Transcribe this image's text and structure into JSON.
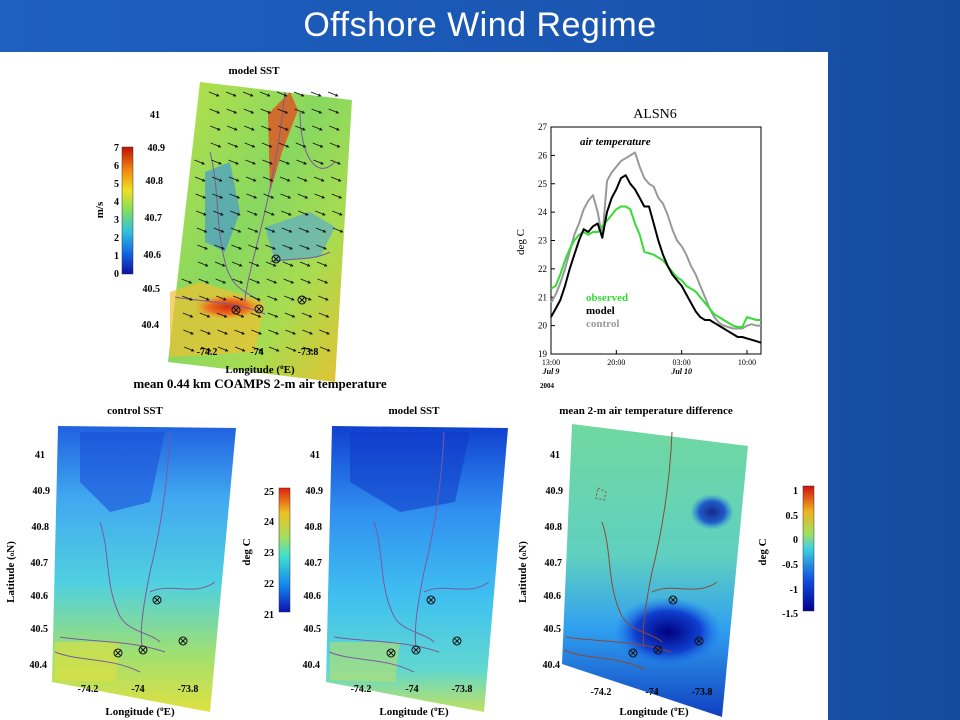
{
  "slide": {
    "title": "Offshore Wind Regime"
  },
  "colors": {
    "observed": "#33dd33",
    "model": "#000000",
    "control": "#999999",
    "coast": "#7a5a9e",
    "slide_bg": "#1a57b3"
  },
  "maps": {
    "wind": {
      "title": "model SST",
      "colorbar_label": "m/s",
      "colorbar_ticks": [
        "0",
        "1",
        "2",
        "3",
        "4",
        "5",
        "6",
        "7"
      ],
      "lat_ticks": [
        "41",
        "40.9",
        "40.8",
        "40.7",
        "40.6",
        "40.5",
        "40.4"
      ],
      "lon_ticks": [
        "-74.2",
        "-74",
        "-73.8"
      ],
      "xlabel": "Longitude (",
      "xlabel_sup": "o",
      "xlabel_end": "E)",
      "caption": "mean 0.44 km COAMPS 2-m air temperature"
    },
    "control": {
      "title": "control SST",
      "ylabel": "Latitude (",
      "ylabel_sup": "o",
      "ylabel_end": "N)",
      "lat_ticks": [
        "41",
        "40.9",
        "40.8",
        "40.7",
        "40.6",
        "40.5",
        "40.4"
      ],
      "lon_ticks": [
        "-74.2",
        "-74",
        "-73.8"
      ],
      "xlabel": "Longitude (",
      "xlabel_sup": "o",
      "xlabel_end": "E)"
    },
    "model": {
      "title": "model SST",
      "lat_ticks": [
        "41",
        "40.9",
        "40.8",
        "40.7",
        "40.6",
        "40.5",
        "40.4"
      ],
      "lon_ticks": [
        "-74.2",
        "-74",
        "-73.8"
      ],
      "xlabel": "Longitude (",
      "xlabel_sup": "o",
      "xlabel_end": "E)",
      "colorbar_label": "deg C",
      "colorbar_ticks": [
        "21",
        "22",
        "23",
        "24",
        "25"
      ]
    },
    "diff": {
      "title": "mean 2-m air temperature difference",
      "ylabel": "Latitude (",
      "ylabel_sup": "o",
      "ylabel_end": "N)",
      "lat_ticks": [
        "41",
        "40.9",
        "40.8",
        "40.7",
        "40.6",
        "40.5",
        "40.4"
      ],
      "lon_ticks": [
        "-74.2",
        "-74",
        "-73.8"
      ],
      "xlabel": "Longitude (",
      "xlabel_sup": "o",
      "xlabel_end": "E)",
      "colorbar_label": "deg C",
      "colorbar_ticks": [
        "1",
        "0.5",
        "0",
        "-0.5",
        "-1",
        "-1.5"
      ]
    }
  },
  "chart_data": {
    "type": "line",
    "title": "ALSN6",
    "annotation": "air temperature",
    "ylabel": "deg C",
    "ylim": [
      19,
      27
    ],
    "yticks": [
      "19",
      "20",
      "21",
      "22",
      "23",
      "24",
      "25",
      "26",
      "27"
    ],
    "xlim": [
      13.0,
      35.5
    ],
    "x_unit": "hours from Jul 9 00:00, 2004",
    "xtick_labels": [
      {
        "x": 13,
        "time": "13:00",
        "date": "Jul 9"
      },
      {
        "x": 20,
        "time": "20:00",
        "date": ""
      },
      {
        "x": 27,
        "time": "03:00",
        "date": "Jul 10"
      },
      {
        "x": 34,
        "time": "10:00",
        "date": ""
      }
    ],
    "year_label": "2004",
    "legend": [
      "observed",
      "model",
      "control"
    ],
    "legend_position": "lower-left",
    "series": [
      {
        "name": "observed",
        "x": [
          13,
          13.5,
          14,
          14.5,
          15,
          15.5,
          16,
          16.5,
          17,
          17.5,
          18,
          18.5,
          19,
          19.5,
          20,
          20.5,
          21,
          21.5,
          22,
          22.5,
          23,
          23.5,
          24,
          24.5,
          25,
          25.5,
          26,
          26.5,
          27,
          27.5,
          28,
          28.5,
          29,
          29.5,
          30,
          30.5,
          31,
          31.5,
          32,
          32.5,
          33,
          33.5,
          34,
          34.5,
          35,
          35.5
        ],
        "y": [
          21.3,
          21.4,
          21.8,
          22.3,
          22.7,
          23.0,
          23.2,
          23.3,
          23.2,
          23.3,
          23.3,
          23.5,
          23.7,
          23.9,
          24.1,
          24.2,
          24.2,
          24.1,
          23.6,
          23.2,
          22.6,
          22.55,
          22.5,
          22.4,
          22.3,
          22.1,
          21.9,
          21.7,
          21.6,
          21.4,
          21.3,
          21.2,
          21.0,
          20.8,
          20.6,
          20.4,
          20.3,
          20.2,
          20.1,
          20.0,
          19.95,
          19.95,
          20.3,
          20.25,
          20.2,
          20.2
        ]
      },
      {
        "name": "model",
        "x": [
          13,
          13.5,
          14,
          14.5,
          15,
          15.5,
          16,
          16.5,
          17,
          17.5,
          18,
          18.5,
          19,
          19.5,
          20,
          20.5,
          21,
          21.5,
          22,
          22.5,
          23,
          23.5,
          24,
          24.5,
          25,
          25.5,
          26,
          26.5,
          27,
          27.5,
          28,
          28.5,
          29,
          29.5,
          30,
          30.5,
          31,
          31.5,
          32,
          32.5,
          33,
          33.5,
          34,
          34.5,
          35,
          35.5
        ],
        "y": [
          20.3,
          20.6,
          20.9,
          21.4,
          22.0,
          22.5,
          23.0,
          23.4,
          23.3,
          23.5,
          23.6,
          23.1,
          24.0,
          24.5,
          24.8,
          25.2,
          25.3,
          25.0,
          24.8,
          24.5,
          24.2,
          24.2,
          23.6,
          23.0,
          22.5,
          22.1,
          21.8,
          21.6,
          21.4,
          21.1,
          20.8,
          20.5,
          20.3,
          20.2,
          20.2,
          20.1,
          20.0,
          19.9,
          19.8,
          19.7,
          19.6,
          19.6,
          19.55,
          19.5,
          19.45,
          19.4
        ]
      },
      {
        "name": "control",
        "x": [
          13,
          13.5,
          14,
          14.5,
          15,
          15.5,
          16,
          16.5,
          17,
          17.5,
          18,
          18.5,
          19,
          19.5,
          20,
          20.5,
          21,
          21.5,
          22,
          22.5,
          23,
          23.5,
          24,
          24.5,
          25,
          25.5,
          26,
          26.5,
          27,
          27.5,
          28,
          28.5,
          29,
          29.5,
          30,
          30.5,
          31,
          31.5,
          32,
          32.5,
          33,
          33.5,
          34,
          34.5,
          35,
          35.5
        ],
        "y": [
          20.8,
          21.1,
          21.5,
          22.0,
          22.6,
          23.2,
          23.6,
          24.1,
          24.4,
          24.6,
          24.0,
          23.1,
          25.1,
          25.4,
          25.6,
          25.8,
          25.9,
          26.0,
          26.1,
          25.6,
          25.2,
          25.0,
          24.9,
          24.5,
          24.3,
          23.9,
          23.4,
          23.0,
          22.8,
          22.5,
          22.1,
          21.8,
          21.4,
          21.0,
          20.6,
          20.3,
          20.1,
          20.0,
          19.95,
          19.9,
          19.9,
          19.9,
          20.0,
          20.05,
          20.0,
          20.0
        ]
      }
    ]
  }
}
